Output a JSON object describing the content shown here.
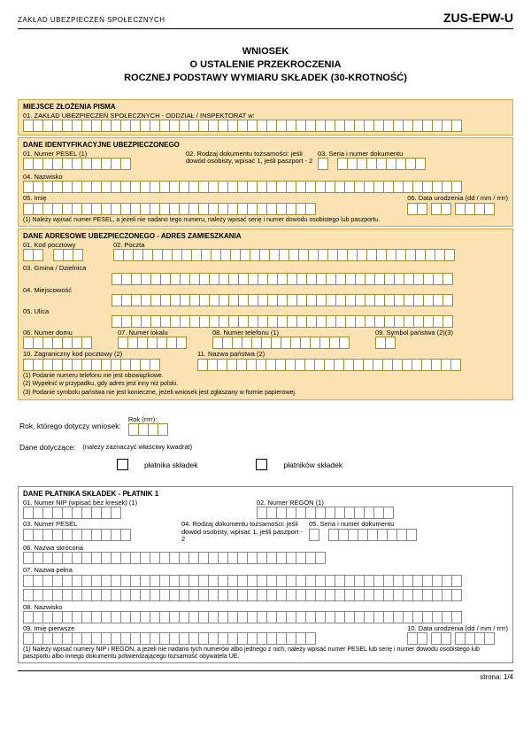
{
  "header": {
    "org": "ZAKŁAD UBEZPIECZEŃ SPOŁECZNYCH",
    "form_code": "ZUS-EPW-U",
    "title1": "WNIOSEK",
    "title2": "O USTALENIE PRZEKROCZENIA",
    "title3": "ROCZNEJ PODSTAWY WYMIARU SKŁADEK (30-KROTNOŚĆ)"
  },
  "sec1": {
    "title": "MIEJSCE ZŁOŻENIA PISMA",
    "f01": "01. ZAKŁAD UBEZPIECZEŃ SPOŁECZNYCH - ODDZIAŁ / INSPEKTORAT w:"
  },
  "sec2": {
    "title": "DANE IDENTYFIKACYJNE UBEZPIECZONEGO",
    "f01": "01. Numer PESEL (1)",
    "f02": "02. Rodzaj dokumentu tożsamości: jeśli dowód osobisty, wpisać 1, jeśli paszport - 2",
    "f03": "03. Seria i numer dokumentu",
    "f04": "04. Nazwisko",
    "f05": "05. Imię",
    "f06": "06. Data urodzenia (dd / mm / rrrr)",
    "note": "(1) Należy wpisać numer PESEL, a jeżeli nie nadano tego numeru, należy wpisać serię i numer dowodu osobistego lub paszportu."
  },
  "sec3": {
    "title": "DANE ADRESOWE UBEZPIECZONEGO - ADRES ZAMIESZKANIA",
    "f01": "01. Kod pocztowy",
    "f02": "02. Poczta",
    "f03": "03. Gmina / Dzielnica",
    "f04": "04. Miejscowość",
    "f05": "05. Ulica",
    "f06": "06. Numer domu",
    "f07": "07. Numer lokalu",
    "f08": "08. Numer telefonu (1)",
    "f09": "09. Symbol państwa (2)(3)",
    "f10": "10. Zagraniczny kod pocztowy (2)",
    "f11": "11. Nazwa państwa (2)",
    "note1": "(1) Podanie numeru telefonu nie jest obowiązkowe.",
    "note2": "(2) Wypełnić w przypadku, gdy adres jest inny niż polski.",
    "note3": "(3) Podanie symbolu państwa nie jest konieczne, jeżeli wniosek jest zgłaszany w formie papierowej."
  },
  "mid": {
    "rok_label": "Rok, którego dotyczy wniosek:",
    "rok_hint": "Rok (rrrr):",
    "dane_label": "Dane dotyczące:",
    "dane_hint": "(należy zaznaczyć właściwy kwadrat)",
    "opt1": "płatnika składek",
    "opt2": "płatników składek"
  },
  "sec4": {
    "title": "DANE PŁATNIKA SKŁADEK - PŁATNIK 1",
    "f01": "01. Numer NIP (wpisać bez kresek) (1)",
    "f02": "02. Numer REGON (1)",
    "f03": "03. Numer PESEL",
    "f04": "04. Rodzaj dokumentu tożsamości: jeśli dowód osobisty, wpisać 1, jeśli paszport - 2",
    "f05": "05. Seria i numer dokumentu",
    "f06": "06. Nazwa skrócona",
    "f07": "07. Nazwa pełna",
    "f08": "08. Nazwisko",
    "f09": "09. Imię pierwsze",
    "f10": "10. Data urodzenia (dd / mm / rrrr)",
    "note": "(1) Należy wpisać numery NIP i REGON, a jeżeli nie nadano tych numerów albo jednego z nich, należy wpisać numer PESEL lub serię i numer dowodu osobistego lub paszportu albo innego dokumentu potwierdzającego tożsamość obywatela UE."
  },
  "footer": {
    "page": "strona: 1/4"
  },
  "style": {
    "peach_bg": "#fbe2b2",
    "peach_border": "#d4a84a",
    "cell_border_peach": "#a88830",
    "cell_border_gray": "#888"
  }
}
